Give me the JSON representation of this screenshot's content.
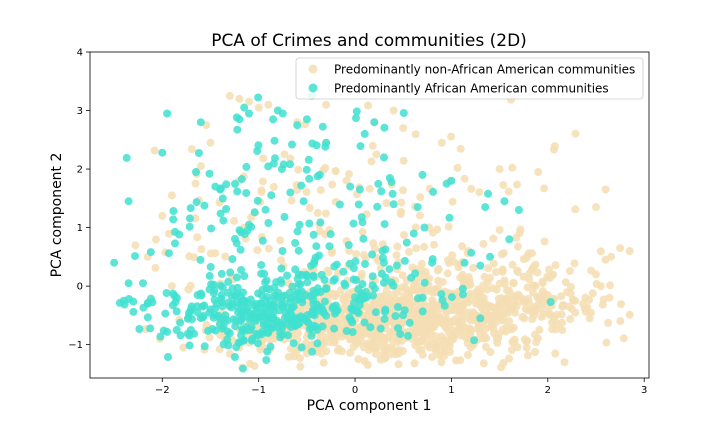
{
  "chart_data": {
    "type": "scatter",
    "title": "PCA of Crimes and communities (2D)",
    "xlabel": "PCA component 1",
    "ylabel": "PCA component 2",
    "xlim": [
      -2.75,
      3.05
    ],
    "ylim": [
      -1.57,
      4.0
    ],
    "xticks": [
      -2,
      -1,
      0,
      1,
      2,
      3
    ],
    "yticks": [
      -1,
      0,
      1,
      2,
      3,
      4
    ],
    "grid": false,
    "legend_position": "top-right",
    "series": [
      {
        "name": "Predominantly non-African American communities",
        "color": "#f5deb3",
        "generator": {
          "seed": 7,
          "count": 1250,
          "clusters": [
            {
              "weight": 0.48,
              "cx": 0.4,
              "cy": -0.55,
              "sx": 0.65,
              "sy": 0.35
            },
            {
              "weight": 0.22,
              "cx": 1.5,
              "cy": -0.25,
              "sx": 0.55,
              "sy": 0.45
            },
            {
              "weight": 0.15,
              "cx": -0.6,
              "cy": -0.75,
              "sx": 0.55,
              "sy": 0.22
            },
            {
              "weight": 0.15,
              "cx": 0.0,
              "cy": 1.0,
              "sx": 1.2,
              "sy": 0.95
            }
          ]
        },
        "points": [
          [
            -1.3,
            3.25
          ],
          [
            -1.2,
            3.2
          ],
          [
            -1.1,
            3.15
          ],
          [
            -0.9,
            3.1
          ],
          [
            -1.0,
            3.05
          ],
          [
            -0.6,
            2.8
          ],
          [
            0.2,
            2.8
          ],
          [
            0.5,
            2.7
          ],
          [
            0.9,
            2.45
          ],
          [
            -0.3,
            2.45
          ],
          [
            1.5,
            2.0
          ],
          [
            1.9,
            1.95
          ],
          [
            2.6,
            1.65
          ],
          [
            2.5,
            1.35
          ],
          [
            2.75,
            0.65
          ],
          [
            2.85,
            0.6
          ],
          [
            2.6,
            0.45
          ],
          [
            2.5,
            0.2
          ],
          [
            2.55,
            0.0
          ],
          [
            -1.6,
            2.05
          ],
          [
            -1.5,
            2.45
          ],
          [
            -1.9,
            1.55
          ],
          [
            -2.0,
            1.2
          ],
          [
            -2.15,
            0.5
          ],
          [
            -1.9,
            0.0
          ],
          [
            2.2,
            -0.1
          ],
          [
            2.0,
            -0.15
          ],
          [
            1.2,
            -1.05
          ],
          [
            0.1,
            -1.28
          ],
          [
            -0.5,
            -1.15
          ],
          [
            -1.2,
            -1.05
          ],
          [
            -1.0,
            -0.85
          ],
          [
            0.4,
            3.0
          ],
          [
            -0.3,
            3.1
          ]
        ]
      },
      {
        "name": "Predominantly African American communities",
        "color": "#40e0d0",
        "generator": {
          "seed": 23,
          "count": 520,
          "clusters": [
            {
              "weight": 0.55,
              "cx": -0.95,
              "cy": -0.45,
              "sx": 0.6,
              "sy": 0.3
            },
            {
              "weight": 0.15,
              "cx": 0.0,
              "cy": -0.1,
              "sx": 0.55,
              "sy": 0.35
            },
            {
              "weight": 0.3,
              "cx": -0.7,
              "cy": 1.0,
              "sx": 0.8,
              "sy": 0.9
            }
          ]
        },
        "points": [
          [
            -1.95,
            2.95
          ],
          [
            -1.6,
            2.8
          ],
          [
            -2.0,
            2.28
          ],
          [
            -2.35,
            1.45
          ],
          [
            -2.5,
            0.4
          ],
          [
            -2.35,
            0.05
          ],
          [
            -2.2,
            0.05
          ],
          [
            -2.4,
            -0.25
          ],
          [
            -2.15,
            -0.3
          ],
          [
            -1.85,
            -0.75
          ],
          [
            -1.15,
            3.05
          ],
          [
            -1.1,
            2.95
          ],
          [
            -1.2,
            2.85
          ],
          [
            -0.8,
            3.0
          ],
          [
            -0.85,
            2.85
          ],
          [
            -0.75,
            2.95
          ],
          [
            -0.45,
            3.25
          ],
          [
            -0.5,
            2.85
          ],
          [
            -0.6,
            2.75
          ],
          [
            0.2,
            2.8
          ],
          [
            0.1,
            2.6
          ],
          [
            -0.3,
            2.45
          ],
          [
            0.3,
            2.2
          ],
          [
            -1.65,
            1.95
          ],
          [
            -1.45,
            1.7
          ],
          [
            -1.4,
            1.65
          ],
          [
            0.7,
            1.9
          ],
          [
            0.95,
            1.75
          ],
          [
            1.0,
            1.8
          ],
          [
            1.35,
            1.35
          ],
          [
            1.55,
            1.45
          ],
          [
            1.7,
            1.3
          ],
          [
            1.6,
            0.8
          ],
          [
            0.8,
            0.4
          ],
          [
            1.3,
            0.35
          ],
          [
            1.4,
            0.5
          ],
          [
            0.3,
            0.4
          ],
          [
            0.7,
            -0.2
          ],
          [
            1.3,
            -0.55
          ],
          [
            0.55,
            -0.85
          ],
          [
            0.65,
            1.35
          ],
          [
            0.4,
            1.4
          ],
          [
            -0.05,
            1.7
          ],
          [
            0.05,
            1.65
          ],
          [
            -1.1,
            1.05
          ]
        ]
      }
    ]
  }
}
